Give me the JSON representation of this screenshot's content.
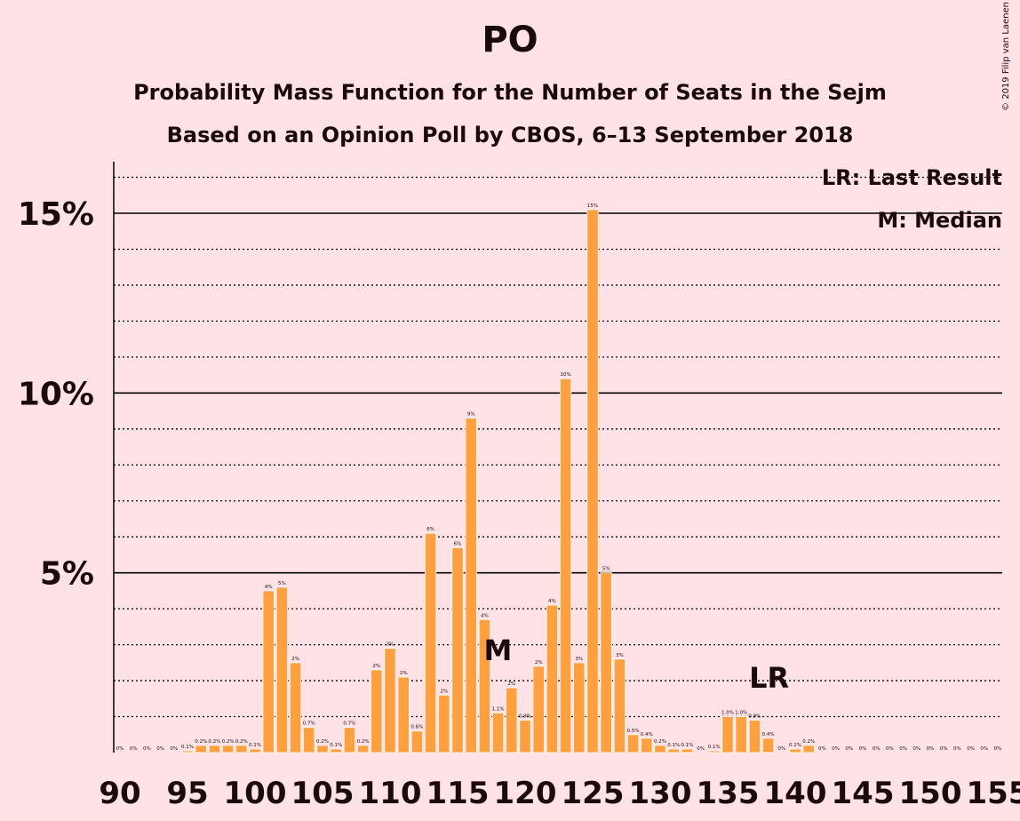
{
  "title": "PO",
  "subtitle1": "Probability Mass Function for the Number of Seats in the Sejm",
  "subtitle2": "Based on an Opinion Poll by CBOS, 6–13 September 2018",
  "copyright": "© 2019 Filip van Laenen",
  "legend": {
    "last_result": "LR: Last Result",
    "median": "M: Median"
  },
  "colors": {
    "bar": "#ffa040",
    "background": "#ffe2e6",
    "text": "#1a0a0a"
  },
  "chart_data": {
    "type": "bar",
    "x": [
      90,
      91,
      92,
      93,
      94,
      95,
      96,
      97,
      98,
      99,
      100,
      101,
      102,
      103,
      104,
      105,
      106,
      107,
      108,
      109,
      110,
      111,
      112,
      113,
      114,
      115,
      116,
      117,
      118,
      119,
      120,
      121,
      122,
      123,
      124,
      125,
      126,
      127,
      128,
      129,
      130,
      131,
      132,
      133,
      134,
      135,
      136,
      137,
      138,
      139,
      140,
      141,
      142,
      143,
      144,
      145,
      146,
      147,
      148,
      149,
      150,
      151,
      152,
      153,
      154,
      155
    ],
    "values": [
      0.0,
      0.0,
      0.0,
      0.0,
      0.0,
      0.05,
      0.2,
      0.2,
      0.2,
      0.2,
      0.1,
      4.5,
      4.6,
      2.5,
      0.7,
      0.2,
      0.1,
      0.7,
      0.2,
      2.3,
      2.9,
      2.1,
      0.6,
      6.1,
      1.6,
      5.7,
      9.3,
      3.7,
      1.1,
      1.8,
      0.9,
      2.4,
      4.1,
      10.4,
      2.5,
      15.1,
      5.0,
      2.6,
      0.5,
      0.4,
      0.2,
      0.1,
      0.1,
      0.0,
      0.05,
      1.0,
      1.0,
      0.9,
      0.4,
      0.0,
      0.1,
      0.2,
      0.0,
      0.0,
      0.0,
      0.0,
      0.0,
      0.0,
      0.0,
      0.0,
      0.0,
      0.0,
      0.0,
      0.0,
      0.0,
      0.0
    ],
    "data_labels": [
      "0%",
      "0%",
      "0%",
      "0%",
      "0%",
      "0.1%",
      "0.2%",
      "0.2%",
      "0.2%",
      "0.2%",
      "0.1%",
      "4%",
      "5%",
      "2%",
      "0.7%",
      "0.2%",
      "0.1%",
      "0.7%",
      "0.2%",
      "2%",
      "3%",
      "2%",
      "0.6%",
      "6%",
      "2%",
      "6%",
      "9%",
      "4%",
      "1.1%",
      "2%",
      "0.9%",
      "2%",
      "4%",
      "10%",
      "3%",
      "15%",
      "5%",
      "3%",
      "0.5%",
      "0.4%",
      "0.2%",
      "0.1%",
      "0.1%",
      "0%",
      "0.1%",
      "1.0%",
      "1.0%",
      "0.9%",
      "0.4%",
      "0%",
      "0.1%",
      "0.2%",
      "0%",
      "0%",
      "0%",
      "0%",
      "0%",
      "0%",
      "0%",
      "0%",
      "0%",
      "0%",
      "0%",
      "0%",
      "0%",
      "0%"
    ],
    "x_ticks": [
      "90",
      "95",
      "100",
      "105",
      "110",
      "115",
      "120",
      "125",
      "130",
      "135",
      "140",
      "145",
      "150",
      "155"
    ],
    "y_ticks": [
      "5%",
      "10%",
      "15%"
    ],
    "ylim": [
      0,
      16.5
    ],
    "median_x": 117,
    "median_label": "M",
    "last_result_x": 138,
    "last_result_label": "LR",
    "grid": "dotted minor lines every 1%, solid major lines every 5%"
  }
}
